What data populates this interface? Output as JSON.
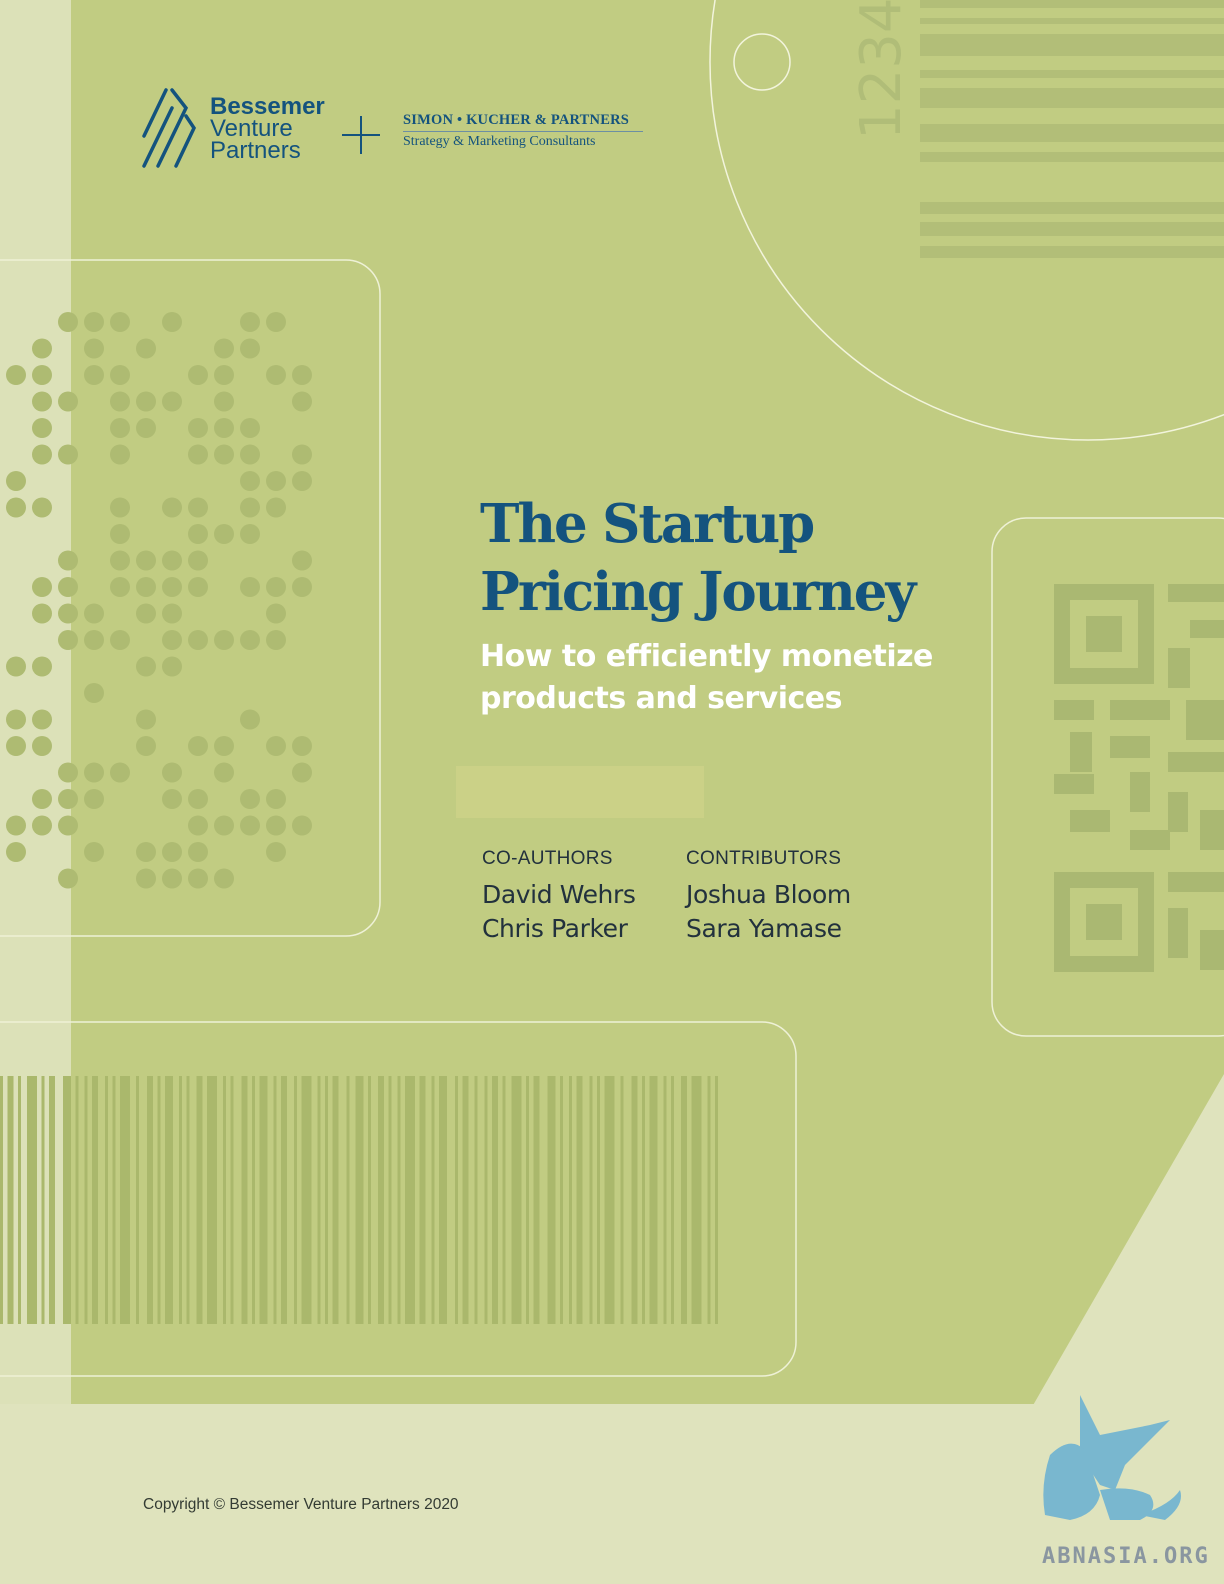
{
  "brand": {
    "bvp_lines": [
      "Bessemer",
      "Venture",
      "Partners"
    ],
    "skp_name": "SIMON • KUCHER & PARTNERS",
    "skp_tagline": "Strategy & Marketing Consultants",
    "color_primary": "#14537e"
  },
  "decor": {
    "tag_number": "1234"
  },
  "cover": {
    "title_lines": [
      "The Startup",
      "Pricing Journey"
    ],
    "subtitle_lines": [
      "How to efficiently monetize",
      "products and services"
    ]
  },
  "credits": {
    "coauthors_heading": "CO-AUTHORS",
    "coauthors": [
      "David Wehrs",
      "Chris Parker"
    ],
    "contributors_heading": "CONTRIBUTORS",
    "contributors": [
      "Joshua Bloom",
      "Sara Yamase"
    ]
  },
  "footer": {
    "copyright": "Copyright © Bessemer Venture Partners 2020"
  },
  "watermark": {
    "text": "ABNASIA.ORG"
  }
}
